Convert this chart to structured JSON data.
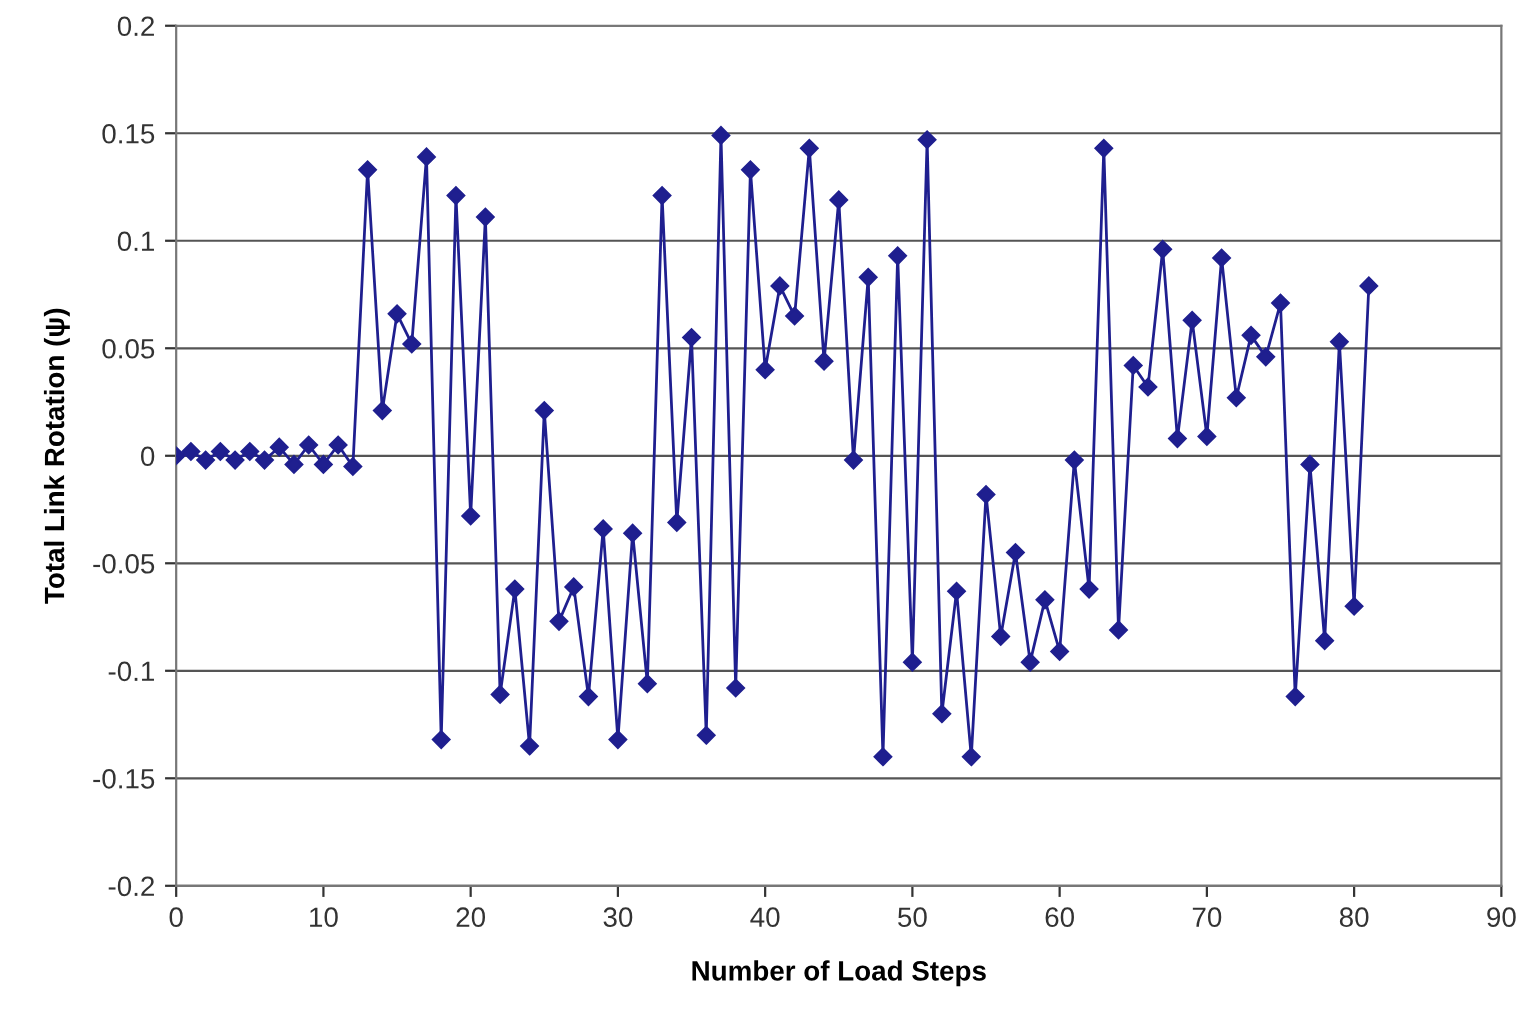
{
  "chart_data": {
    "type": "line",
    "xlabel": "Number of Load Steps",
    "ylabel": "Total Link Rotation (ψ)",
    "x": [
      0,
      1,
      2,
      3,
      4,
      5,
      6,
      7,
      8,
      9,
      10,
      11,
      12,
      13,
      14,
      15,
      16,
      17,
      18,
      19,
      20,
      21,
      22,
      23,
      24,
      25,
      26,
      27,
      28,
      29,
      30,
      31,
      32,
      33,
      34,
      35,
      36,
      37,
      38,
      39,
      40,
      41,
      42,
      43,
      44,
      45,
      46,
      47,
      48,
      49,
      50,
      51,
      52,
      53,
      54,
      55,
      56,
      57,
      58,
      59,
      60,
      61,
      62,
      63,
      64,
      65,
      66,
      67,
      68,
      69,
      70,
      71,
      72,
      73,
      74,
      75,
      76,
      77,
      78,
      79,
      80,
      81
    ],
    "series": [
      {
        "color": "#1f1f8f",
        "values": [
          0,
          0.002,
          -0.002,
          0.002,
          -0.002,
          0.002,
          -0.002,
          0.004,
          -0.004,
          0.005,
          -0.004,
          0.005,
          -0.005,
          0.133,
          0.021,
          0.066,
          0.052,
          0.139,
          -0.132,
          0.121,
          -0.028,
          0.111,
          -0.111,
          -0.062,
          -0.135,
          0.021,
          -0.077,
          -0.061,
          -0.112,
          -0.034,
          -0.132,
          -0.036,
          -0.106,
          0.121,
          -0.031,
          0.055,
          -0.13,
          0.149,
          -0.108,
          0.133,
          0.04,
          0.079,
          0.065,
          0.143,
          0.044,
          0.119,
          -0.002,
          0.083,
          -0.14,
          0.093,
          -0.096,
          0.147,
          -0.12,
          -0.063,
          -0.14,
          -0.018,
          -0.084,
          -0.045,
          -0.096,
          -0.067,
          -0.091,
          -0.002,
          -0.062,
          0.143,
          -0.081,
          0.042,
          0.032,
          0.096,
          0.008,
          0.063,
          0.009,
          0.092,
          0.027,
          0.056,
          0.046,
          0.071,
          -0.112,
          -0.004,
          -0.086,
          0.053,
          -0.07,
          0.079
        ]
      }
    ],
    "xlim": [
      0,
      90
    ],
    "xticks": [
      0,
      10,
      20,
      30,
      40,
      50,
      60,
      70,
      80,
      90
    ],
    "ylim": [
      -0.2,
      0.2
    ],
    "yticks": [
      -0.2,
      -0.15,
      -0.1,
      -0.05,
      0,
      0.05,
      0.1,
      0.15,
      0.2
    ],
    "grid": "y",
    "marker": "diamond",
    "line_style": "solid"
  }
}
